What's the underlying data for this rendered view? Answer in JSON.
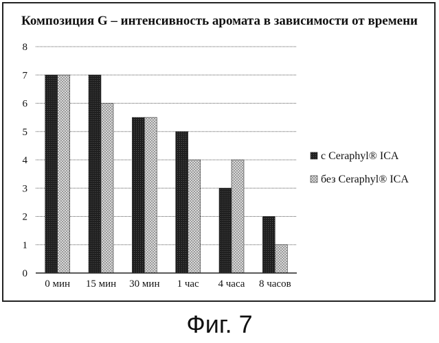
{
  "caption": "Фиг. 7",
  "chart_data": {
    "type": "bar",
    "title": "Композиция G – интенсивность аромата в зависимости от времени",
    "categories": [
      "0 мин",
      "15 мин",
      "30 мин",
      "1 час",
      "4 часа",
      "8 часов"
    ],
    "series": [
      {
        "name": "с Ceraphyl® ICA",
        "values": [
          7,
          7,
          5.5,
          5,
          3,
          2
        ],
        "color": "#2a2a2a"
      },
      {
        "name": "без Ceraphyl® ICA",
        "values": [
          7,
          6,
          5.5,
          4,
          4,
          1
        ],
        "color": "#c8c8c8"
      }
    ],
    "ylim": [
      0,
      8
    ],
    "yticks": [
      0,
      1,
      2,
      3,
      4,
      5,
      6,
      7,
      8
    ],
    "grid": true,
    "legend": "right"
  }
}
